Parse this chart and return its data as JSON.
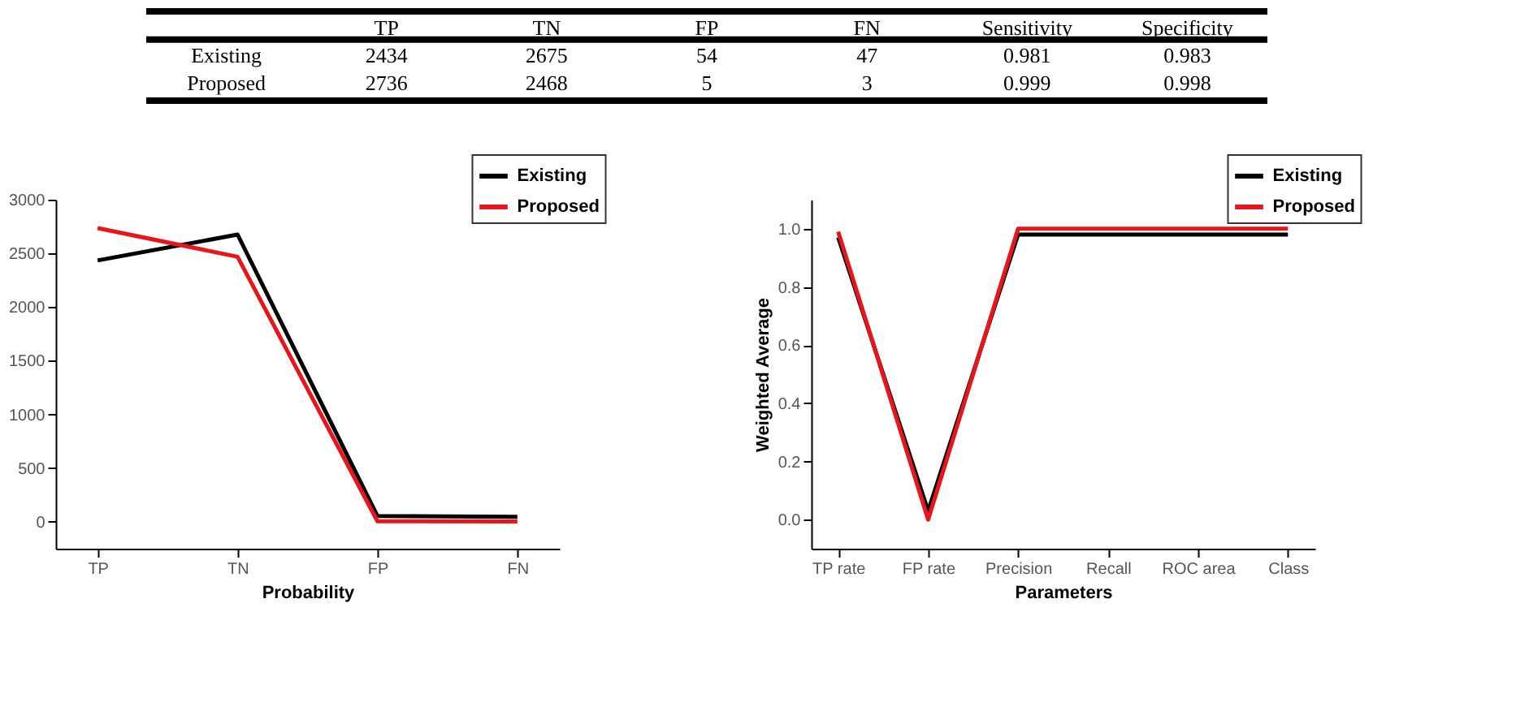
{
  "chart_data": [
    {
      "type": "other",
      "categories": [
        "TP",
        "TN",
        "FP",
        "FN",
        "Sensitivity",
        "Specificity"
      ],
      "data_labels": true,
      "series": [
        {
          "name": "Existing",
          "values": [
            2434,
            2675,
            54,
            47,
            0.981,
            0.983
          ]
        },
        {
          "name": "Proposed",
          "values": [
            2736,
            2468,
            5,
            3,
            0.999,
            0.998
          ]
        }
      ]
    },
    {
      "type": "line",
      "xlabel": "Probability",
      "categories": [
        "TP",
        "TN",
        "FP",
        "FN"
      ],
      "ylim": [
        -250,
        3000
      ],
      "yticks": [
        0,
        500,
        1000,
        1500,
        2000,
        2500,
        3000
      ],
      "grid": false,
      "legend": "top right",
      "marker": "none",
      "line_style": "solid",
      "series": [
        {
          "name": "Existing",
          "color": "#000000",
          "values": [
            2434,
            2675,
            54,
            47
          ]
        },
        {
          "name": "Proposed",
          "color": "#e8161b",
          "values": [
            2736,
            2468,
            5,
            3
          ]
        }
      ]
    },
    {
      "type": "line",
      "xlabel": "Parameters",
      "ylabel": "Weighted Average",
      "categories": [
        "TP rate",
        "FP rate",
        "Precision",
        "Recall",
        "ROC area",
        "Class"
      ],
      "ylim": [
        -0.1,
        1.1
      ],
      "yticks": [
        {
          "value": 0,
          "label": "0.0"
        },
        {
          "value": 0.2,
          "label": "0.2"
        },
        {
          "value": 0.4,
          "label": "0.4"
        },
        {
          "value": 0.6,
          "label": "0.6"
        },
        {
          "value": 0.8,
          "label": "0.8"
        },
        {
          "value": 1,
          "label": "1.0"
        }
      ],
      "grid": false,
      "legend": "top right",
      "marker": "none",
      "line_style": "solid",
      "series": [
        {
          "name": "Existing",
          "color": "#000000",
          "values": [
            0.97,
            0.03,
            0.98,
            0.98,
            0.98,
            0.98
          ]
        },
        {
          "name": "Proposed",
          "color": "#e8161b",
          "values": [
            0.99,
            0.0,
            1.0,
            1.0,
            1.0,
            1.0
          ]
        }
      ]
    }
  ]
}
